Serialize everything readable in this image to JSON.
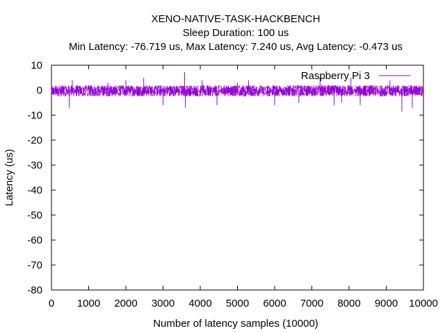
{
  "chart_data": {
    "type": "line",
    "title": "XENO-NATIVE-TASK-HACKBENCH",
    "subtitle_1": "Sleep Duration: 100 us",
    "subtitle_2": "Min Latency: -76.719 us, Max Latency: 7.240 us, Avg Latency: -0.473 us",
    "xlabel": "Number of latency samples (10000)",
    "ylabel": "Latency (us)",
    "xlim": [
      0,
      10000
    ],
    "ylim": [
      -80,
      10
    ],
    "xticks": [
      0,
      1000,
      2000,
      3000,
      4000,
      5000,
      6000,
      7000,
      8000,
      9000,
      10000
    ],
    "yticks": [
      10,
      0,
      -10,
      -20,
      -30,
      -40,
      -50,
      -60,
      -70,
      -80
    ],
    "grid": false,
    "legend_position": "top-right",
    "series": [
      {
        "name": "Raspberry Pi 3",
        "color": "#9400d3",
        "noise_band": [
          -2.5,
          2.5
        ],
        "spikes": [
          {
            "x": 480,
            "y": -7
          },
          {
            "x": 560,
            "y": 4
          },
          {
            "x": 1520,
            "y": 3
          },
          {
            "x": 2000,
            "y": 4
          },
          {
            "x": 2480,
            "y": 5
          },
          {
            "x": 3000,
            "y": -6
          },
          {
            "x": 3580,
            "y": 7.2
          },
          {
            "x": 3600,
            "y": -7
          },
          {
            "x": 4050,
            "y": 4
          },
          {
            "x": 4450,
            "y": -6
          },
          {
            "x": 5000,
            "y": 3
          },
          {
            "x": 5300,
            "y": 4
          },
          {
            "x": 6000,
            "y": -6
          },
          {
            "x": 6650,
            "y": -5
          },
          {
            "x": 7220,
            "y": 5
          },
          {
            "x": 7600,
            "y": -6
          },
          {
            "x": 7800,
            "y": -5
          },
          {
            "x": 8050,
            "y": 5
          },
          {
            "x": 8300,
            "y": -6
          },
          {
            "x": 9100,
            "y": 4
          },
          {
            "x": 9420,
            "y": -8.5
          },
          {
            "x": 9700,
            "y": -7
          }
        ],
        "min": -76.719,
        "max": 7.24,
        "avg": -0.473
      }
    ]
  }
}
